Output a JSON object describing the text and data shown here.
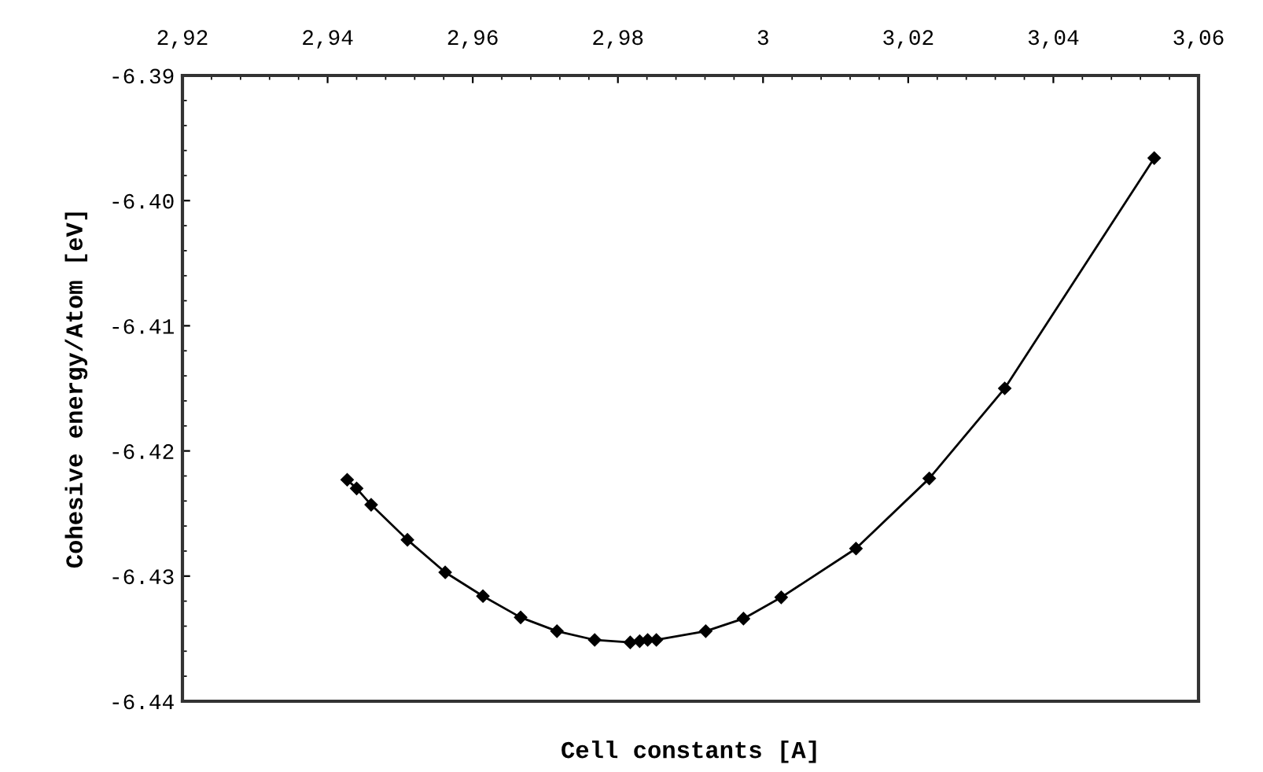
{
  "chart_data": {
    "type": "line",
    "xlabel": "Cell constants [A]",
    "ylabel": "Cohesive energy/Atom [eV]",
    "x": [
      2.9427,
      2.944,
      2.946,
      2.951,
      2.9562,
      2.9614,
      2.9666,
      2.9716,
      2.9768,
      2.9817,
      2.983,
      2.9841,
      2.9853,
      2.9921,
      2.9973,
      3.0025,
      3.0128,
      3.0229,
      3.0333,
      3.0539
    ],
    "series": [
      {
        "color": "#000000",
        "values": [
          -6.4223,
          -6.423,
          -6.4243,
          -6.4271,
          -6.4297,
          -6.4316,
          -6.4333,
          -6.4344,
          -6.4351,
          -6.4353,
          -6.4352,
          -6.4351,
          -6.4351,
          -6.4344,
          -6.4334,
          -6.4317,
          -6.4278,
          -6.4222,
          -6.415,
          -6.3966
        ]
      }
    ],
    "xlim": [
      2.92,
      3.06
    ],
    "xticks": [
      {
        "value": 2.92,
        "label": "2,92"
      },
      {
        "value": 2.94,
        "label": "2,94"
      },
      {
        "value": 2.96,
        "label": "2,96"
      },
      {
        "value": 2.98,
        "label": "2,98"
      },
      3,
      {
        "value": 3.02,
        "label": "3,02"
      },
      {
        "value": 3.04,
        "label": "3,04"
      },
      {
        "value": 3.06,
        "label": "3,06"
      }
    ],
    "ylim": [
      -6.44,
      -6.39
    ],
    "yticks": [
      -6.44,
      -6.43,
      -6.42,
      -6.41,
      {
        "value": -6.4,
        "label": "-6.40"
      },
      -6.39
    ],
    "marker": "diamond",
    "line_style": "solid",
    "grid": false,
    "legend": false
  }
}
